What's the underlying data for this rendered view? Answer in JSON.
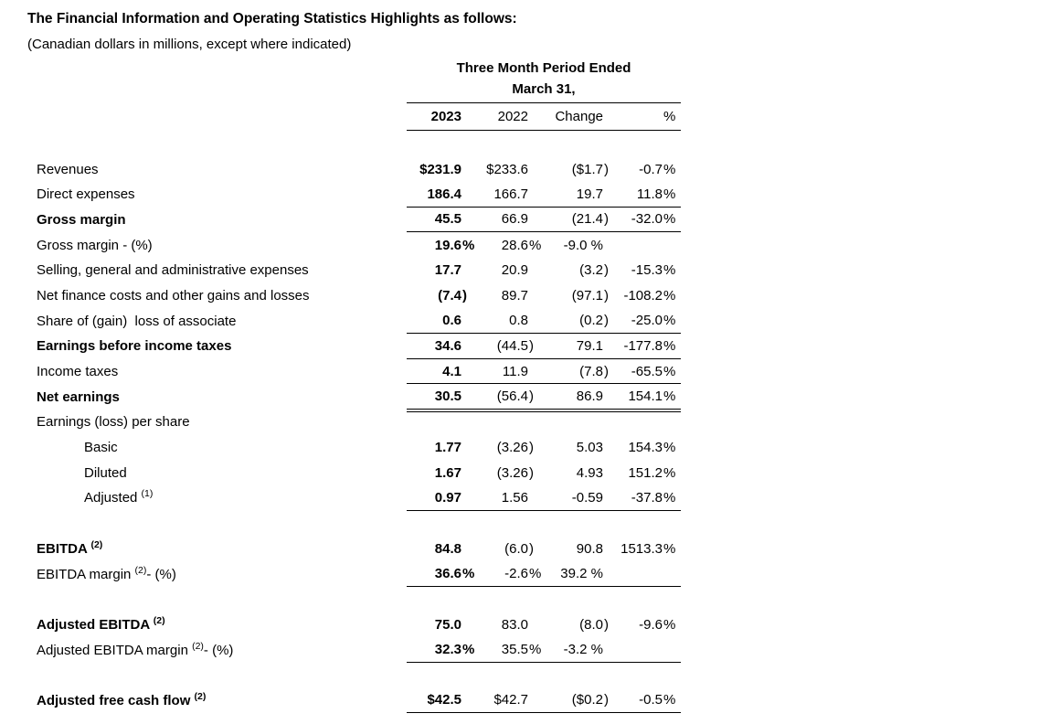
{
  "title": "The Financial Information and Operating Statistics Highlights as follows:",
  "subtitle": "(Canadian dollars in millions, except where indicated)",
  "colors": {
    "text": "#000000",
    "background": "#ffffff"
  },
  "table": {
    "period_header": "Three Month Period Ended",
    "date_header": "March 31,",
    "columns": [
      "2023",
      "2022",
      "Change",
      "%"
    ],
    "rows": [
      {
        "type": "data",
        "label": "Revenues",
        "sup": "",
        "tail": "",
        "indent": false,
        "bold": false,
        "rule": "none",
        "values": [
          "$231.9",
          "$233.6",
          "($1.7)",
          "-0.7 %"
        ]
      },
      {
        "type": "data",
        "label": "Direct expenses",
        "sup": "",
        "tail": "",
        "indent": false,
        "bold": false,
        "rule": "single",
        "values": [
          "186.4",
          "166.7",
          "19.7",
          "11.8 %"
        ]
      },
      {
        "type": "data",
        "label": "Gross margin",
        "sup": "",
        "tail": "",
        "indent": false,
        "bold": true,
        "rule": "single",
        "values": [
          "45.5",
          "66.9",
          "(21.4)",
          "-32.0 %"
        ]
      },
      {
        "type": "data",
        "label": "Gross margin - (%)",
        "sup": "",
        "tail": "",
        "indent": false,
        "bold": false,
        "rule": "none",
        "values": [
          "19.6 %",
          "28.6 %",
          "-9.0 %",
          ""
        ]
      },
      {
        "type": "data",
        "label": "Selling, general and administrative expenses",
        "sup": "",
        "tail": "",
        "indent": false,
        "bold": false,
        "rule": "none",
        "values": [
          "17.7",
          "20.9",
          "(3.2)",
          "-15.3 %"
        ]
      },
      {
        "type": "data",
        "label": "Net finance costs and other gains and losses",
        "sup": "",
        "tail": "",
        "indent": false,
        "bold": false,
        "rule": "none",
        "values": [
          "(7.4)",
          "89.7",
          "(97.1)",
          "-108.2 %"
        ]
      },
      {
        "type": "data",
        "label": "Share of (gain)  loss of associate",
        "sup": "",
        "tail": "",
        "indent": false,
        "bold": false,
        "rule": "single",
        "values": [
          "0.6",
          "0.8",
          "(0.2)",
          "-25.0 %"
        ]
      },
      {
        "type": "data",
        "label": "Earnings before income taxes",
        "sup": "",
        "tail": "",
        "indent": false,
        "bold": true,
        "rule": "single",
        "values": [
          "34.6",
          "(44.5)",
          "79.1",
          "-177.8 %"
        ]
      },
      {
        "type": "data",
        "label": "Income taxes",
        "sup": "",
        "tail": "",
        "indent": false,
        "bold": false,
        "rule": "single",
        "values": [
          "4.1",
          "11.9",
          "(7.8)",
          "-65.5 %"
        ]
      },
      {
        "type": "data",
        "label": "Net earnings",
        "sup": "",
        "tail": "",
        "indent": false,
        "bold": true,
        "rule": "double",
        "values": [
          "30.5",
          "(56.4)",
          "86.9",
          "154.1 %"
        ]
      },
      {
        "type": "data",
        "label": "Earnings (loss) per share",
        "sup": "",
        "tail": "",
        "indent": false,
        "bold": false,
        "rule": "none",
        "values": [
          "",
          "",
          "",
          ""
        ]
      },
      {
        "type": "data",
        "label": "Basic",
        "sup": "",
        "tail": "",
        "indent": true,
        "bold": false,
        "rule": "none",
        "values": [
          "1.77",
          "(3.26)",
          "5.03",
          "154.3 %"
        ]
      },
      {
        "type": "data",
        "label": "Diluted",
        "sup": "",
        "tail": "",
        "indent": true,
        "bold": false,
        "rule": "none",
        "values": [
          "1.67",
          "(3.26)",
          "4.93",
          "151.2 %"
        ]
      },
      {
        "type": "data",
        "label": "Adjusted ",
        "sup": "(1)",
        "tail": "",
        "indent": true,
        "bold": false,
        "rule": "single",
        "values": [
          "0.97",
          "1.56",
          "-0.59",
          "-37.8 %"
        ]
      },
      {
        "type": "spacer"
      },
      {
        "type": "data",
        "label": "EBITDA ",
        "sup": "(2)",
        "tail": "",
        "indent": false,
        "bold": true,
        "rule": "none",
        "values": [
          "84.8",
          "(6.0)",
          "90.8",
          "1513.3 %"
        ]
      },
      {
        "type": "data",
        "label": "EBITDA margin ",
        "sup": "(2)",
        "tail": "- (%)",
        "indent": false,
        "bold": false,
        "rule": "single",
        "values": [
          "36.6 %",
          "-2.6 %",
          "39.2 %",
          ""
        ]
      },
      {
        "type": "spacer"
      },
      {
        "type": "data",
        "label": "Adjusted EBITDA ",
        "sup": "(2)",
        "tail": "",
        "indent": false,
        "bold": true,
        "rule": "none",
        "values": [
          "75.0",
          "83.0",
          "(8.0)",
          "-9.6 %"
        ]
      },
      {
        "type": "data",
        "label": "Adjusted EBITDA margin ",
        "sup": "(2)",
        "tail": "- (%)",
        "indent": false,
        "bold": false,
        "rule": "single",
        "values": [
          "32.3 %",
          "35.5 %",
          "-3.2 %",
          ""
        ]
      },
      {
        "type": "spacer"
      },
      {
        "type": "data",
        "label": "Adjusted free cash flow ",
        "sup": "(2)",
        "tail": "",
        "indent": false,
        "bold": true,
        "rule": "single",
        "values": [
          "$42.5",
          "$42.7",
          "($0.2)",
          "-0.5 %"
        ]
      }
    ]
  }
}
